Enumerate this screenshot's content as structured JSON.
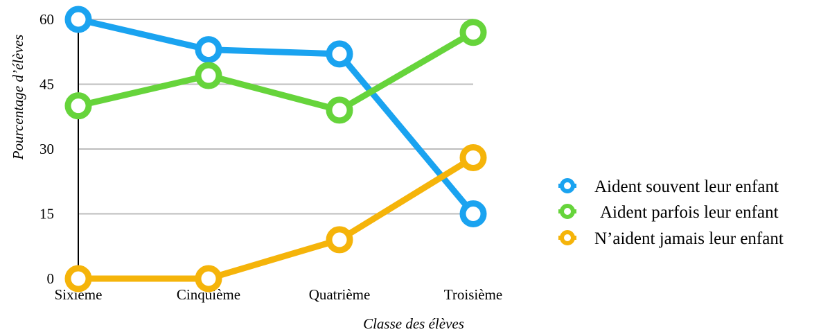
{
  "chart_data": {
    "type": "line",
    "categories": [
      "Sixième",
      "Cinquième",
      "Quatrième",
      "Troisième"
    ],
    "xlabel": "Classe des élèves",
    "ylabel": "Pourcentage d’élèves",
    "ylim": [
      0,
      60
    ],
    "yticks": [
      0,
      15,
      30,
      45,
      60
    ],
    "grid": true,
    "legend_position": "right",
    "series": [
      {
        "name": "Aident souvent leur enfant",
        "color": "#1aa3f0",
        "values": [
          60,
          53,
          52,
          15
        ]
      },
      {
        "name": "Aident parfois leur enfant",
        "color": "#66d43b",
        "values": [
          40,
          47,
          39,
          57
        ]
      },
      {
        "name": "N’aident jamais leur enfant",
        "color": "#f5b40a",
        "values": [
          0,
          0,
          9,
          28
        ]
      }
    ]
  }
}
